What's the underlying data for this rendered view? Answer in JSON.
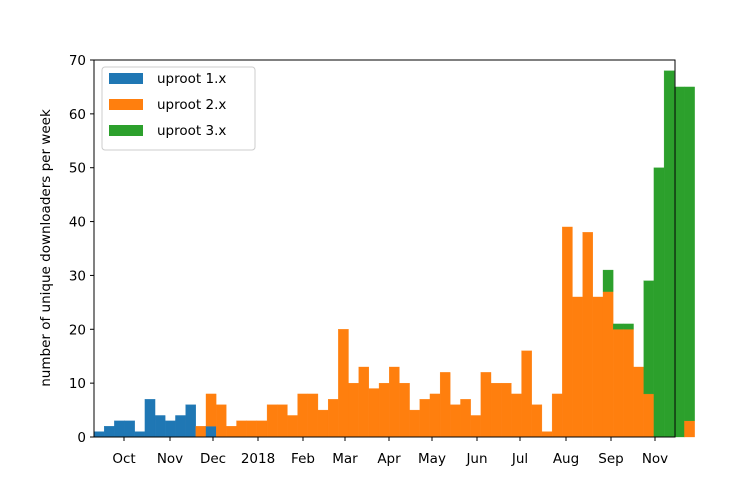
{
  "chart_data": {
    "type": "bar",
    "stacked": true,
    "ylabel": "number of unique downloaders per week",
    "xlabel": "",
    "ylim": [
      0,
      70
    ],
    "yticks": [
      0,
      10,
      20,
      30,
      40,
      50,
      60,
      70
    ],
    "x_tick_labels": [
      "Oct",
      "Nov",
      "Dec",
      "2018",
      "Feb",
      "Mar",
      "Apr",
      "May",
      "Jun",
      "Jul",
      "Aug",
      "Sep",
      "Nov"
    ],
    "legend_position": "upper left",
    "series": [
      {
        "name": "uproot 1.x",
        "color": "#1f77b4",
        "values": [
          1,
          2,
          3,
          3,
          1,
          7,
          4,
          3,
          4,
          6,
          0,
          2,
          0,
          0,
          0,
          0,
          0,
          0,
          0,
          0,
          0,
          0,
          0,
          0,
          0,
          0,
          0,
          0,
          0,
          0,
          0,
          0,
          0,
          0,
          0,
          0,
          0,
          0,
          0,
          0,
          0,
          0,
          0,
          0,
          0,
          0,
          0,
          0,
          0,
          0,
          0,
          0,
          0,
          0,
          0,
          0,
          0,
          0,
          0
        ]
      },
      {
        "name": "uproot 2.x",
        "color": "#ff7f0e",
        "values": [
          0,
          0,
          0,
          0,
          0,
          0,
          0,
          0,
          0,
          0,
          2,
          6,
          6,
          2,
          3,
          3,
          3,
          6,
          6,
          4,
          8,
          8,
          5,
          7,
          20,
          10,
          13,
          9,
          10,
          13,
          10,
          5,
          7,
          8,
          12,
          6,
          7,
          4,
          12,
          10,
          10,
          8,
          16,
          6,
          1,
          8,
          39,
          26,
          38,
          26,
          27,
          20,
          20,
          13,
          8,
          0,
          0,
          0,
          3
        ]
      },
      {
        "name": "uproot 3.x",
        "color": "#2ca02c",
        "values": [
          0,
          0,
          0,
          0,
          0,
          0,
          0,
          0,
          0,
          0,
          0,
          0,
          0,
          0,
          0,
          0,
          0,
          0,
          0,
          0,
          0,
          0,
          0,
          0,
          0,
          0,
          0,
          0,
          0,
          0,
          0,
          0,
          0,
          0,
          0,
          0,
          0,
          0,
          0,
          0,
          0,
          0,
          0,
          0,
          0,
          0,
          0,
          0,
          0,
          0,
          4,
          1,
          1,
          0,
          21,
          50,
          68,
          65,
          62
        ]
      }
    ]
  }
}
